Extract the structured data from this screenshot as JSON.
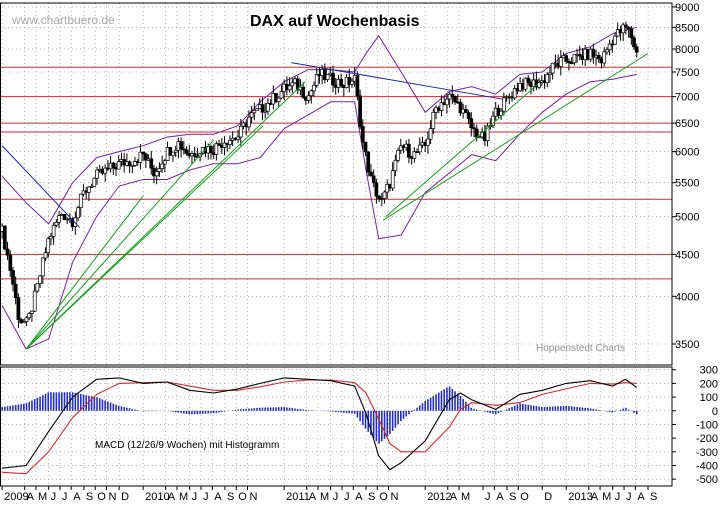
{
  "watermark": "www.chartbuero.de",
  "credit": "Hoppenstedt Charts",
  "chart_data": [
    {
      "type": "candlestick",
      "title": "DAX auf Wochenbasis",
      "y_scale": "log",
      "ylim": [
        3300,
        9100
      ],
      "y_ticks": [
        {
          "value": 9000,
          "label": "9000"
        },
        {
          "value": 8500,
          "label": "8500"
        },
        {
          "value": 8000,
          "label": "8000"
        },
        {
          "value": 7500,
          "label": "7500"
        },
        {
          "value": 7000,
          "label": "7000"
        },
        {
          "value": 6500,
          "label": "6500"
        },
        {
          "value": 6000,
          "label": "6000"
        },
        {
          "value": 5500,
          "label": "5500"
        },
        {
          "value": 5000,
          "label": "5000"
        },
        {
          "value": 4500,
          "label": "4500"
        },
        {
          "value": 4000,
          "label": "4000"
        },
        {
          "value": 3500,
          "label": "3500"
        }
      ],
      "horizontal_levels": [
        7600,
        7000,
        6500,
        6340,
        5250,
        4500,
        4200
      ],
      "close_path": [
        [
          2009.0,
          4800
        ],
        [
          2009.06,
          4300
        ],
        [
          2009.12,
          3750
        ],
        [
          2009.18,
          3700
        ],
        [
          2009.25,
          4100
        ],
        [
          2009.33,
          4700
        ],
        [
          2009.42,
          5050
        ],
        [
          2009.5,
          4950
        ],
        [
          2009.58,
          5350
        ],
        [
          2009.67,
          5600
        ],
        [
          2009.75,
          5700
        ],
        [
          2009.83,
          5800
        ],
        [
          2009.92,
          5850
        ],
        [
          2010.0,
          5950
        ],
        [
          2010.08,
          5650
        ],
        [
          2010.17,
          6000
        ],
        [
          2010.25,
          6150
        ],
        [
          2010.33,
          5950
        ],
        [
          2010.42,
          6050
        ],
        [
          2010.5,
          6050
        ],
        [
          2010.58,
          6200
        ],
        [
          2010.67,
          6250
        ],
        [
          2010.75,
          6600
        ],
        [
          2010.83,
          6750
        ],
        [
          2010.92,
          6950
        ],
        [
          2011.0,
          7150
        ],
        [
          2011.08,
          7250
        ],
        [
          2011.17,
          7000
        ],
        [
          2011.25,
          7450
        ],
        [
          2011.33,
          7350
        ],
        [
          2011.42,
          7250
        ],
        [
          2011.5,
          7350
        ],
        [
          2011.56,
          6100
        ],
        [
          2011.62,
          5500
        ],
        [
          2011.69,
          5200
        ],
        [
          2011.75,
          5500
        ],
        [
          2011.83,
          6100
        ],
        [
          2011.92,
          5950
        ],
        [
          2012.0,
          6100
        ],
        [
          2012.08,
          6800
        ],
        [
          2012.17,
          7000
        ],
        [
          2012.25,
          6800
        ],
        [
          2012.33,
          6400
        ],
        [
          2012.42,
          6200
        ],
        [
          2012.5,
          6700
        ],
        [
          2012.58,
          6950
        ],
        [
          2012.67,
          7250
        ],
        [
          2012.75,
          7250
        ],
        [
          2012.83,
          7300
        ],
        [
          2012.92,
          7650
        ],
        [
          2013.0,
          7750
        ],
        [
          2013.08,
          7800
        ],
        [
          2013.17,
          7900
        ],
        [
          2013.25,
          7750
        ],
        [
          2013.33,
          8250
        ],
        [
          2013.42,
          8500
        ],
        [
          2013.46,
          8300
        ],
        [
          2013.5,
          7900
        ]
      ],
      "bollinger_upper": [
        [
          2009.0,
          5600
        ],
        [
          2009.17,
          5200
        ],
        [
          2009.33,
          4900
        ],
        [
          2009.5,
          5500
        ],
        [
          2009.67,
          5900
        ],
        [
          2009.83,
          6000
        ],
        [
          2010.0,
          6100
        ],
        [
          2010.17,
          6250
        ],
        [
          2010.33,
          6300
        ],
        [
          2010.5,
          6300
        ],
        [
          2010.67,
          6450
        ],
        [
          2010.83,
          6900
        ],
        [
          2011.0,
          7300
        ],
        [
          2011.17,
          7550
        ],
        [
          2011.33,
          7550
        ],
        [
          2011.5,
          7500
        ],
        [
          2011.58,
          7900
        ],
        [
          2011.67,
          8300
        ],
        [
          2011.83,
          7500
        ],
        [
          2012.0,
          6700
        ],
        [
          2012.17,
          7100
        ],
        [
          2012.33,
          7200
        ],
        [
          2012.5,
          7050
        ],
        [
          2012.67,
          7450
        ],
        [
          2012.83,
          7500
        ],
        [
          2013.0,
          7900
        ],
        [
          2013.17,
          8050
        ],
        [
          2013.33,
          8350
        ],
        [
          2013.5,
          8500
        ]
      ],
      "bollinger_lower": [
        [
          2009.0,
          3900
        ],
        [
          2009.17,
          3450
        ],
        [
          2009.33,
          3550
        ],
        [
          2009.5,
          4400
        ],
        [
          2009.67,
          5000
        ],
        [
          2009.83,
          5450
        ],
        [
          2010.0,
          5550
        ],
        [
          2010.17,
          5550
        ],
        [
          2010.33,
          5700
        ],
        [
          2010.5,
          5800
        ],
        [
          2010.67,
          5800
        ],
        [
          2010.83,
          5900
        ],
        [
          2011.0,
          6400
        ],
        [
          2011.17,
          6650
        ],
        [
          2011.33,
          6900
        ],
        [
          2011.5,
          6900
        ],
        [
          2011.58,
          5700
        ],
        [
          2011.67,
          4700
        ],
        [
          2011.83,
          4750
        ],
        [
          2012.0,
          5350
        ],
        [
          2012.17,
          5650
        ],
        [
          2012.33,
          5950
        ],
        [
          2012.5,
          5850
        ],
        [
          2012.67,
          6300
        ],
        [
          2012.83,
          6700
        ],
        [
          2013.0,
          7050
        ],
        [
          2013.17,
          7300
        ],
        [
          2013.33,
          7350
        ],
        [
          2013.5,
          7450
        ]
      ],
      "trendlines": [
        {
          "color": "#1c2aa8",
          "points": [
            [
              2009.0,
              6100
            ],
            [
              2009.55,
              4850
            ]
          ]
        },
        {
          "color": "#1c2aa8",
          "points": [
            [
              2011.05,
              7700
            ],
            [
              2012.55,
              6950
            ]
          ]
        },
        {
          "color": "#14a01c",
          "points": [
            [
              2009.17,
              3450
            ],
            [
              2011.15,
              7300
            ]
          ]
        },
        {
          "color": "#14a01c",
          "points": [
            [
              2009.17,
              3450
            ],
            [
              2010.5,
              6200
            ]
          ]
        },
        {
          "color": "#14a01c",
          "points": [
            [
              2009.17,
              3450
            ],
            [
              2010.85,
              6450
            ]
          ]
        },
        {
          "color": "#14a01c",
          "points": [
            [
              2009.17,
              3450
            ],
            [
              2010.0,
              5300
            ]
          ]
        },
        {
          "color": "#14a01c",
          "points": [
            [
              2011.7,
              4950
            ],
            [
              2013.58,
              7900
            ]
          ]
        },
        {
          "color": "#14a01c",
          "points": [
            [
              2011.72,
              5000
            ],
            [
              2012.8,
              7250
            ]
          ]
        }
      ]
    },
    {
      "type": "macd",
      "label": "MACD (12/26/9 Wochen) mit Histogramm",
      "ylim": [
        -550,
        320
      ],
      "y_ticks": [
        {
          "value": 300,
          "label": "300"
        },
        {
          "value": 200,
          "label": "200"
        },
        {
          "value": 100,
          "label": "100"
        },
        {
          "value": 0,
          "label": "0"
        },
        {
          "value": -100,
          "label": "-100"
        },
        {
          "value": -200,
          "label": "-200"
        },
        {
          "value": -300,
          "label": "-300"
        },
        {
          "value": -400,
          "label": "-400"
        },
        {
          "value": -500,
          "label": "-500"
        }
      ],
      "macd": [
        [
          2009.0,
          -420
        ],
        [
          2009.17,
          -400
        ],
        [
          2009.33,
          -150
        ],
        [
          2009.5,
          100
        ],
        [
          2009.67,
          230
        ],
        [
          2009.83,
          240
        ],
        [
          2010.0,
          200
        ],
        [
          2010.17,
          210
        ],
        [
          2010.33,
          150
        ],
        [
          2010.5,
          130
        ],
        [
          2010.67,
          160
        ],
        [
          2010.83,
          200
        ],
        [
          2011.0,
          240
        ],
        [
          2011.17,
          230
        ],
        [
          2011.33,
          220
        ],
        [
          2011.5,
          180
        ],
        [
          2011.58,
          -20
        ],
        [
          2011.67,
          -330
        ],
        [
          2011.75,
          -430
        ],
        [
          2011.83,
          -380
        ],
        [
          2012.0,
          -220
        ],
        [
          2012.17,
          80
        ],
        [
          2012.25,
          130
        ],
        [
          2012.33,
          80
        ],
        [
          2012.5,
          10
        ],
        [
          2012.67,
          120
        ],
        [
          2012.83,
          150
        ],
        [
          2013.0,
          200
        ],
        [
          2013.17,
          220
        ],
        [
          2013.33,
          180
        ],
        [
          2013.42,
          230
        ],
        [
          2013.5,
          170
        ]
      ],
      "signal": [
        [
          2009.0,
          -450
        ],
        [
          2009.17,
          -460
        ],
        [
          2009.33,
          -300
        ],
        [
          2009.5,
          -50
        ],
        [
          2009.67,
          120
        ],
        [
          2009.83,
          200
        ],
        [
          2010.0,
          205
        ],
        [
          2010.17,
          210
        ],
        [
          2010.33,
          180
        ],
        [
          2010.5,
          150
        ],
        [
          2010.67,
          150
        ],
        [
          2010.83,
          175
        ],
        [
          2011.0,
          210
        ],
        [
          2011.17,
          225
        ],
        [
          2011.33,
          225
        ],
        [
          2011.5,
          205
        ],
        [
          2011.58,
          130
        ],
        [
          2011.67,
          -60
        ],
        [
          2011.75,
          -240
        ],
        [
          2011.83,
          -300
        ],
        [
          2012.0,
          -300
        ],
        [
          2012.17,
          -120
        ],
        [
          2012.25,
          10
        ],
        [
          2012.33,
          60
        ],
        [
          2012.5,
          40
        ],
        [
          2012.67,
          60
        ],
        [
          2012.83,
          120
        ],
        [
          2013.0,
          160
        ],
        [
          2013.17,
          200
        ],
        [
          2013.33,
          195
        ],
        [
          2013.42,
          205
        ],
        [
          2013.5,
          200
        ]
      ]
    }
  ],
  "x_axis": {
    "range": [
      2008.985,
      2013.75
    ],
    "labels": [
      {
        "pos": 2009.0,
        "label": "2009"
      },
      {
        "pos": 2009.16,
        "label": "A"
      },
      {
        "pos": 2009.24,
        "label": "M"
      },
      {
        "pos": 2009.33,
        "label": "J"
      },
      {
        "pos": 2009.41,
        "label": "J"
      },
      {
        "pos": 2009.49,
        "label": "A"
      },
      {
        "pos": 2009.58,
        "label": "S"
      },
      {
        "pos": 2009.66,
        "label": "O"
      },
      {
        "pos": 2009.74,
        "label": "N"
      },
      {
        "pos": 2009.83,
        "label": "D"
      },
      {
        "pos": 2010.0,
        "label": "2010"
      },
      {
        "pos": 2010.16,
        "label": "A"
      },
      {
        "pos": 2010.24,
        "label": "M"
      },
      {
        "pos": 2010.33,
        "label": "J"
      },
      {
        "pos": 2010.41,
        "label": "J"
      },
      {
        "pos": 2010.49,
        "label": "A"
      },
      {
        "pos": 2010.58,
        "label": "S"
      },
      {
        "pos": 2010.66,
        "label": "O"
      },
      {
        "pos": 2010.74,
        "label": "N"
      },
      {
        "pos": 2011.0,
        "label": "2011"
      },
      {
        "pos": 2011.16,
        "label": "A"
      },
      {
        "pos": 2011.24,
        "label": "M"
      },
      {
        "pos": 2011.33,
        "label": "J"
      },
      {
        "pos": 2011.41,
        "label": "J"
      },
      {
        "pos": 2011.49,
        "label": "A"
      },
      {
        "pos": 2011.58,
        "label": "S"
      },
      {
        "pos": 2011.66,
        "label": "O"
      },
      {
        "pos": 2011.74,
        "label": "N"
      },
      {
        "pos": 2012.0,
        "label": "2012"
      },
      {
        "pos": 2012.16,
        "label": "A"
      },
      {
        "pos": 2012.24,
        "label": "M"
      },
      {
        "pos": 2012.41,
        "label": "J"
      },
      {
        "pos": 2012.49,
        "label": "A"
      },
      {
        "pos": 2012.58,
        "label": "S"
      },
      {
        "pos": 2012.66,
        "label": "O"
      },
      {
        "pos": 2012.83,
        "label": "D"
      },
      {
        "pos": 2013.0,
        "label": "2013"
      },
      {
        "pos": 2013.16,
        "label": "A"
      },
      {
        "pos": 2013.24,
        "label": "M"
      },
      {
        "pos": 2013.33,
        "label": "J"
      },
      {
        "pos": 2013.41,
        "label": "J"
      },
      {
        "pos": 2013.49,
        "label": "A"
      },
      {
        "pos": 2013.58,
        "label": "S"
      }
    ]
  },
  "colors": {
    "candles": "#000000",
    "bollinger": "#7a1fa2",
    "levels": "#d8262c",
    "grid": "#8a8a8a",
    "macd": "#000000",
    "signal": "#d8262c",
    "histogram": "#2430b8",
    "watermark": "#a8a8a8"
  }
}
